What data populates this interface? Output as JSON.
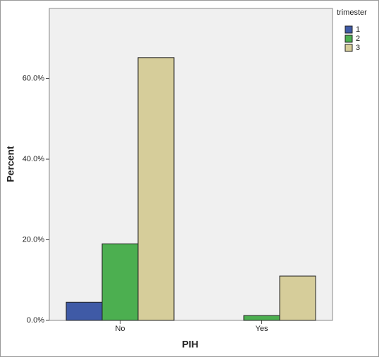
{
  "chart_data": {
    "type": "bar",
    "categories": [
      "No",
      "Yes"
    ],
    "x_label": "PIH",
    "y_label": "Percent",
    "legend_title": "trimester",
    "series": [
      {
        "name": "1",
        "color": "#3f5aa6",
        "values": [
          4.5,
          0
        ]
      },
      {
        "name": "2",
        "color": "#4caf50",
        "values": [
          19.0,
          1.2
        ]
      },
      {
        "name": "3",
        "color": "#d6cd9a",
        "values": [
          65.2,
          11.0
        ]
      }
    ],
    "ylim": [
      0,
      77.4
    ],
    "yticks": [
      {
        "value": 0,
        "label": "0.0%"
      },
      {
        "value": 20,
        "label": "20.0%"
      },
      {
        "value": 40,
        "label": "40.0%"
      },
      {
        "value": 60,
        "label": "60.0%"
      }
    ],
    "legend_position": "right"
  }
}
